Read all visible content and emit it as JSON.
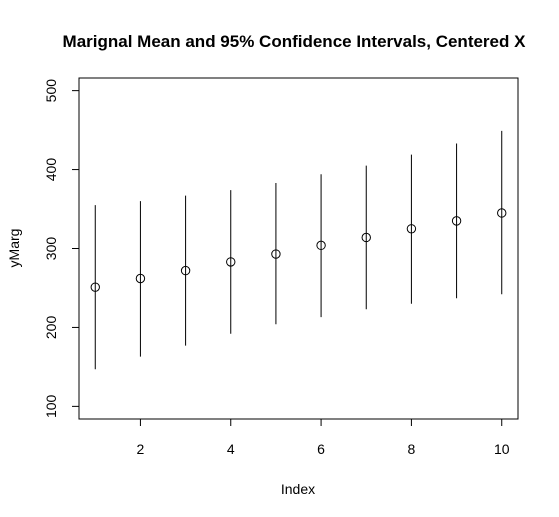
{
  "chart_data": {
    "type": "scatter",
    "title": "Marignal Mean and 95% Confidence Intervals, Centered X",
    "xlabel": "Index",
    "ylabel": "yMarg",
    "xlim": [
      0.64,
      10.36
    ],
    "ylim": [
      84,
      516
    ],
    "x_ticks": [
      2,
      4,
      6,
      8,
      10
    ],
    "y_ticks": [
      100,
      200,
      300,
      400,
      500
    ],
    "grid": false,
    "marker": "open-circle",
    "color": "#000000",
    "points": [
      {
        "x": 1,
        "y": 251,
        "lower": 147,
        "upper": 355
      },
      {
        "x": 2,
        "y": 262,
        "lower": 163,
        "upper": 360
      },
      {
        "x": 3,
        "y": 272,
        "lower": 177,
        "upper": 367
      },
      {
        "x": 4,
        "y": 283,
        "lower": 192,
        "upper": 374
      },
      {
        "x": 5,
        "y": 293,
        "lower": 204,
        "upper": 383
      },
      {
        "x": 6,
        "y": 304,
        "lower": 213,
        "upper": 394
      },
      {
        "x": 7,
        "y": 314,
        "lower": 223,
        "upper": 405
      },
      {
        "x": 8,
        "y": 325,
        "lower": 230,
        "upper": 419
      },
      {
        "x": 9,
        "y": 335,
        "lower": 237,
        "upper": 433
      },
      {
        "x": 10,
        "y": 345,
        "lower": 242,
        "upper": 449
      }
    ]
  }
}
